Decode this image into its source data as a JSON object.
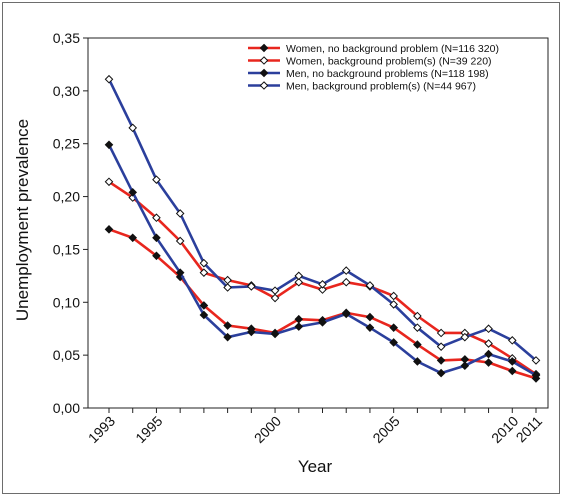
{
  "chart_data": {
    "type": "line",
    "title": "",
    "xlabel": "Year",
    "ylabel": "Unemployment prevalence",
    "x": [
      1993,
      1994,
      1995,
      1996,
      1997,
      1998,
      1999,
      2000,
      2001,
      2002,
      2003,
      2004,
      2005,
      2006,
      2007,
      2008,
      2009,
      2010,
      2011
    ],
    "xlim": [
      1993,
      2011
    ],
    "ylim": [
      0,
      0.35
    ],
    "xticks": [
      1993,
      1995,
      2000,
      2005,
      2010,
      2011
    ],
    "xtick_labels": [
      "1993",
      "1995",
      "2000",
      "2005",
      "2010",
      "2011"
    ],
    "yticks": [
      0,
      0.05,
      0.1,
      0.15,
      0.2,
      0.25,
      0.3,
      0.35
    ],
    "ytick_labels": [
      "0,00",
      "0,05",
      "0,10",
      "0,15",
      "0,20",
      "0,25",
      "0,30",
      "0,35"
    ],
    "grid": false,
    "legend_position": "top-right",
    "series": [
      {
        "name": "Women, no background problem (N=116 320)",
        "color": "#e8261e",
        "marker": "diamond-filled",
        "values": [
          0.169,
          0.161,
          0.144,
          0.124,
          0.097,
          0.078,
          0.075,
          0.071,
          0.084,
          0.083,
          0.09,
          0.086,
          0.076,
          0.06,
          0.045,
          0.046,
          0.043,
          0.035,
          0.028
        ]
      },
      {
        "name": "Women, background problem(s) (N=39 220)",
        "color": "#e8261e",
        "marker": "diamond-open",
        "values": [
          0.214,
          0.199,
          0.18,
          0.158,
          0.128,
          0.121,
          0.116,
          0.104,
          0.119,
          0.112,
          0.119,
          0.115,
          0.106,
          0.087,
          0.071,
          0.071,
          0.061,
          0.047,
          0.032
        ]
      },
      {
        "name": "Men, no background problems (N=118 198)",
        "color": "#2b3f9c",
        "marker": "diamond-filled",
        "values": [
          0.249,
          0.204,
          0.161,
          0.128,
          0.088,
          0.067,
          0.072,
          0.07,
          0.077,
          0.081,
          0.089,
          0.076,
          0.062,
          0.044,
          0.033,
          0.04,
          0.051,
          0.044,
          0.031
        ]
      },
      {
        "name": "Men, background problem(s) (N=44 967)",
        "color": "#2b3f9c",
        "marker": "diamond-open",
        "values": [
          0.311,
          0.265,
          0.216,
          0.184,
          0.137,
          0.114,
          0.115,
          0.111,
          0.125,
          0.117,
          0.13,
          0.116,
          0.098,
          0.076,
          0.058,
          0.067,
          0.075,
          0.064,
          0.045
        ]
      }
    ]
  }
}
